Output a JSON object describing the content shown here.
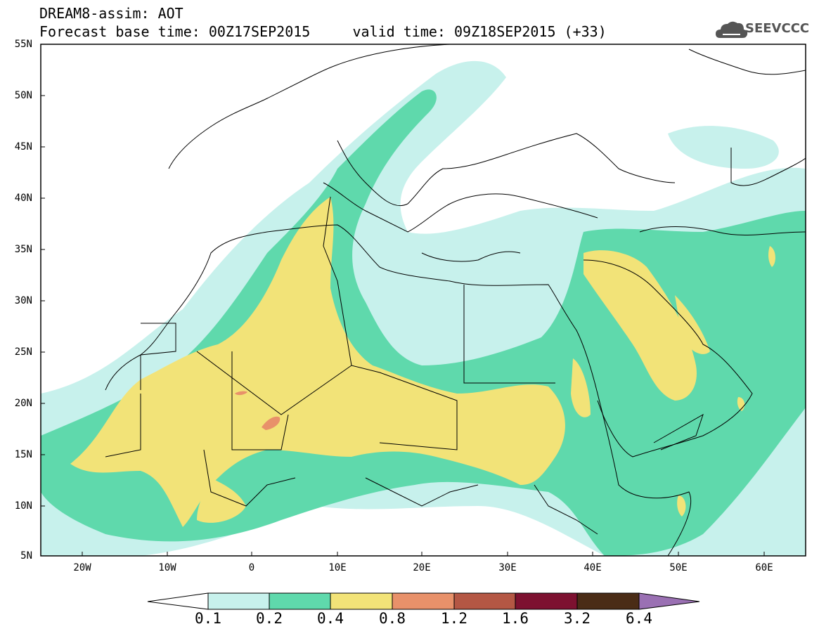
{
  "header": {
    "title_line1": "DREAM8-assim: AOT",
    "title_line2": "Forecast base time: 00Z17SEP2015     valid time: 09Z18SEP2015 (+33)",
    "logo_text": "SEEVCCC"
  },
  "map": {
    "lat_labels": [
      "55N",
      "50N",
      "45N",
      "40N",
      "35N",
      "30N",
      "25N",
      "20N",
      "15N",
      "10N",
      "5N"
    ],
    "lon_labels": [
      "20W",
      "10W",
      "0",
      "10E",
      "20E",
      "30E",
      "40E",
      "50E",
      "60E"
    ],
    "lat_range": [
      5,
      55
    ],
    "lon_range": [
      -25,
      65
    ],
    "field": "Aerosol Optical Thickness"
  },
  "legend": {
    "levels": [
      "0.1",
      "0.2",
      "0.4",
      "0.8",
      "1.2",
      "1.6",
      "3.2",
      "6.4"
    ],
    "colors": [
      "#c7f1ec",
      "#5fd9ac",
      "#f2e378",
      "#e8916a",
      "#b45744",
      "#7d1130",
      "#4a2c16",
      "#9a70b3"
    ]
  },
  "icons": {
    "logo": "cloud-icon"
  }
}
